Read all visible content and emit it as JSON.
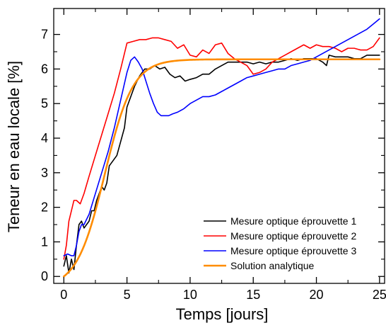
{
  "chart_data": {
    "type": "line",
    "xlabel": "Temps [jours]",
    "ylabel": "Teneur en eau locale [%]",
    "xlim": [
      -0.8,
      25.4
    ],
    "ylim": [
      -0.2,
      7.75
    ],
    "xticks": [
      0,
      5,
      10,
      15,
      20,
      25
    ],
    "yticks": [
      0,
      1,
      2,
      3,
      4,
      5,
      6,
      7
    ],
    "grid": false,
    "legend_position": "bottom-right",
    "series": [
      {
        "name": "Mesure optique éprouvette 1",
        "color": "#000000",
        "x": [
          0,
          0.2,
          0.4,
          0.6,
          0.8,
          1.0,
          1.2,
          1.4,
          1.6,
          1.8,
          2.0,
          2.2,
          2.4,
          2.6,
          2.8,
          3.0,
          3.2,
          3.4,
          3.6,
          3.8,
          4.0,
          4.2,
          4.5,
          4.8,
          5.0,
          5.3,
          5.6,
          6.0,
          6.4,
          6.8,
          7.2,
          7.6,
          8.0,
          8.4,
          8.8,
          9.2,
          9.6,
          10.0,
          10.5,
          11.0,
          11.5,
          12.0,
          12.5,
          13.0,
          13.5,
          14.0,
          14.5,
          15.0,
          15.5,
          16.0,
          16.5,
          17.0,
          17.5,
          18.0,
          18.5,
          19.0,
          19.5,
          20.0,
          20.5,
          20.8,
          21.0,
          21.5,
          22.0,
          22.5,
          23.0,
          23.5,
          24.0,
          24.5,
          25.0
        ],
        "values": [
          0.3,
          0.6,
          0.1,
          0.5,
          0.2,
          0.9,
          1.5,
          1.6,
          1.4,
          1.5,
          1.6,
          1.9,
          1.9,
          2.2,
          2.4,
          2.6,
          2.5,
          2.7,
          3.2,
          3.3,
          3.4,
          3.5,
          3.9,
          4.3,
          4.9,
          5.2,
          5.5,
          5.8,
          6.0,
          6.0,
          6.1,
          6.0,
          6.05,
          5.85,
          5.75,
          5.8,
          5.65,
          5.7,
          5.75,
          5.85,
          5.85,
          6.0,
          6.1,
          6.2,
          6.2,
          6.2,
          6.2,
          6.15,
          6.2,
          6.15,
          6.2,
          6.2,
          6.25,
          6.3,
          6.25,
          6.3,
          6.3,
          6.3,
          6.2,
          6.1,
          6.4,
          6.35,
          6.35,
          6.35,
          6.3,
          6.3,
          6.4,
          6.4,
          6.4
        ]
      },
      {
        "name": "Mesure optique éprouvette 2",
        "color": "#ff0000",
        "x": [
          0,
          0.2,
          0.4,
          0.6,
          0.8,
          1.0,
          1.3,
          1.6,
          2.0,
          2.5,
          3.0,
          3.5,
          4.0,
          4.5,
          5.0,
          5.5,
          6.0,
          6.5,
          7.0,
          7.5,
          8.0,
          8.5,
          9.0,
          9.5,
          10.0,
          10.5,
          11.0,
          11.5,
          12.0,
          12.5,
          13.0,
          13.5,
          14.0,
          14.5,
          15.0,
          15.5,
          16.0,
          16.5,
          17.0,
          17.5,
          18.0,
          18.5,
          19.0,
          19.5,
          20.0,
          20.5,
          21.0,
          21.5,
          22.0,
          22.5,
          23.0,
          23.5,
          24.0,
          24.5,
          25.0
        ],
        "values": [
          0.5,
          0.9,
          1.6,
          1.9,
          2.2,
          2.2,
          2.1,
          2.4,
          2.9,
          3.5,
          4.1,
          4.7,
          5.3,
          6.0,
          6.75,
          6.8,
          6.85,
          6.85,
          6.9,
          6.9,
          6.85,
          6.8,
          6.6,
          6.7,
          6.4,
          6.35,
          6.55,
          6.45,
          6.7,
          6.75,
          6.45,
          6.3,
          6.2,
          6.1,
          5.85,
          5.9,
          6.0,
          6.2,
          6.3,
          6.4,
          6.5,
          6.6,
          6.7,
          6.6,
          6.7,
          6.65,
          6.65,
          6.6,
          6.5,
          6.6,
          6.6,
          6.55,
          6.55,
          6.65,
          6.9
        ]
      },
      {
        "name": "Mesure optique éprouvette 3",
        "color": "#0000ff",
        "x": [
          0,
          0.3,
          0.6,
          0.8,
          1.0,
          1.2,
          1.4,
          1.6,
          2.0,
          2.5,
          3.0,
          3.5,
          4.0,
          4.5,
          5.0,
          5.3,
          5.6,
          5.9,
          6.2,
          6.5,
          6.8,
          7.1,
          7.4,
          7.7,
          8.0,
          8.3,
          8.6,
          9.0,
          9.5,
          10.0,
          10.5,
          11.0,
          11.5,
          12.0,
          12.5,
          13.0,
          13.5,
          14.0,
          14.5,
          15.0,
          15.5,
          16.0,
          16.5,
          17.0,
          17.5,
          18.0,
          18.5,
          19.0,
          19.5,
          20.0,
          20.5,
          21.0,
          21.5,
          22.0,
          22.5,
          23.0,
          23.5,
          24.0,
          24.5,
          25.0
        ],
        "values": [
          0.6,
          0.65,
          0.6,
          0.6,
          0.9,
          1.3,
          1.5,
          1.5,
          1.8,
          2.4,
          3.0,
          3.6,
          4.3,
          5.1,
          5.9,
          6.25,
          6.35,
          6.2,
          6.0,
          5.65,
          5.3,
          5.0,
          4.75,
          4.65,
          4.65,
          4.65,
          4.7,
          4.75,
          4.85,
          5.0,
          5.1,
          5.2,
          5.2,
          5.25,
          5.35,
          5.45,
          5.55,
          5.65,
          5.75,
          5.8,
          5.85,
          5.9,
          5.95,
          6.0,
          6.0,
          6.1,
          6.15,
          6.2,
          6.25,
          6.35,
          6.45,
          6.55,
          6.65,
          6.75,
          6.85,
          6.95,
          7.05,
          7.15,
          7.3,
          7.45
        ]
      },
      {
        "name": "Solution analytique",
        "color": "#ff8c00",
        "model": "logistic",
        "plateau": 6.28,
        "rate": 0.9,
        "midpoint": 3.25,
        "x_range": [
          0,
          25
        ]
      }
    ]
  }
}
